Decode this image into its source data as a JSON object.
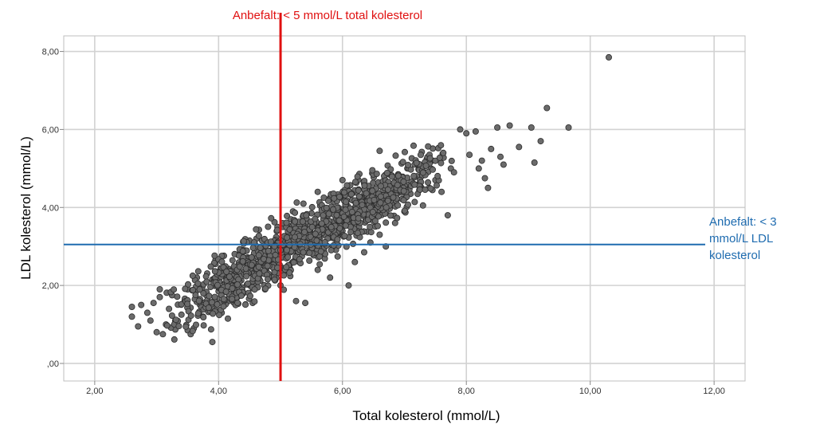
{
  "chart_data": {
    "type": "scatter",
    "title": "",
    "xlabel": "Total kolesterol (mmol/L)",
    "ylabel": "LDL kolesterol (mmol/L)",
    "xlim": [
      1.5,
      12.5
    ],
    "ylim": [
      -0.45,
      8.4
    ],
    "x_ticks": [
      2,
      4,
      6,
      8,
      10,
      12
    ],
    "x_tick_labels": [
      "2,00",
      "4,00",
      "6,00",
      "8,00",
      "10,00",
      "12,00"
    ],
    "y_ticks": [
      0,
      2,
      4,
      6,
      8
    ],
    "y_tick_labels": [
      ",00",
      "2,00",
      "4,00",
      "6,00",
      "8,00"
    ],
    "grid": true,
    "marker_color": "#6b6b6b",
    "marker_edge_color": "#2b2b2b",
    "reference_lines": [
      {
        "orientation": "vertical",
        "value": 5,
        "color": "#e01010",
        "label": "Anbefalt: < 5 mmol/L total kolesterol"
      },
      {
        "orientation": "horizontal",
        "value": 3.05,
        "color": "#1f6cb0",
        "label_lines": [
          "Anbefalt: < 3",
          "mmol/L LDL",
          "kolesterol"
        ]
      }
    ],
    "points": [
      [
        2.6,
        1.45
      ],
      [
        2.6,
        1.2
      ],
      [
        2.7,
        0.95
      ],
      [
        2.75,
        1.5
      ],
      [
        2.85,
        1.3
      ],
      [
        2.9,
        1.1
      ],
      [
        2.95,
        1.55
      ],
      [
        3.0,
        0.8
      ],
      [
        3.05,
        1.7
      ],
      [
        3.1,
        0.75
      ],
      [
        3.15,
        1.0
      ],
      [
        3.2,
        1.4
      ],
      [
        3.3,
        1.1
      ],
      [
        3.4,
        1.25
      ],
      [
        3.5,
        0.85
      ],
      [
        3.55,
        0.75
      ],
      [
        3.6,
        0.9
      ],
      [
        3.9,
        0.55
      ],
      [
        3.05,
        1.9
      ],
      [
        3.25,
        1.75
      ],
      [
        3.45,
        1.6
      ],
      [
        3.5,
        1.9
      ],
      [
        3.65,
        2.2
      ],
      [
        3.7,
        1.5
      ],
      [
        3.75,
        1.2
      ],
      [
        3.8,
        1.75
      ],
      [
        3.9,
        2.15
      ],
      [
        3.95,
        2.55
      ],
      [
        4.0,
        1.85
      ],
      [
        4.05,
        1.3
      ],
      [
        4.15,
        1.15
      ],
      [
        4.25,
        1.55
      ],
      [
        3.95,
        2.65
      ],
      [
        4.0,
        2.35
      ],
      [
        4.1,
        2.05
      ],
      [
        4.3,
        2.3
      ],
      [
        4.2,
        1.95
      ],
      [
        4.4,
        1.8
      ],
      [
        4.55,
        1.55
      ],
      [
        4.6,
        2.5
      ],
      [
        4.5,
        3.15
      ],
      [
        4.65,
        2.2
      ],
      [
        4.75,
        1.9
      ],
      [
        4.8,
        2.75
      ],
      [
        4.9,
        2.4
      ],
      [
        4.95,
        3.5
      ],
      [
        5.0,
        2.0
      ],
      [
        5.1,
        2.7
      ],
      [
        5.2,
        3.05
      ],
      [
        5.3,
        2.6
      ],
      [
        5.25,
        1.6
      ],
      [
        5.4,
        1.55
      ],
      [
        5.45,
        3.35
      ],
      [
        5.6,
        2.4
      ],
      [
        5.7,
        2.9
      ],
      [
        5.8,
        2.2
      ],
      [
        5.9,
        3.0
      ],
      [
        6.0,
        3.4
      ],
      [
        6.1,
        2.0
      ],
      [
        6.2,
        2.6
      ],
      [
        6.25,
        3.5
      ],
      [
        6.35,
        2.85
      ],
      [
        6.45,
        3.1
      ],
      [
        6.5,
        3.9
      ],
      [
        6.6,
        3.3
      ],
      [
        6.7,
        3.0
      ],
      [
        6.75,
        4.2
      ],
      [
        6.85,
        3.6
      ],
      [
        6.95,
        4.5
      ],
      [
        7.0,
        3.9
      ],
      [
        7.1,
        4.35
      ],
      [
        7.2,
        4.8
      ],
      [
        7.3,
        4.05
      ],
      [
        7.4,
        4.5
      ],
      [
        7.45,
        5.2
      ],
      [
        7.5,
        4.7
      ],
      [
        7.6,
        4.4
      ],
      [
        7.7,
        3.8
      ],
      [
        7.75,
        5.0
      ],
      [
        7.8,
        4.9
      ],
      [
        6.6,
        5.45
      ],
      [
        6.0,
        4.7
      ],
      [
        5.8,
        4.25
      ],
      [
        5.5,
        3.85
      ],
      [
        5.2,
        3.9
      ],
      [
        5.6,
        4.4
      ],
      [
        6.9,
        4.85
      ],
      [
        7.9,
        6.0
      ],
      [
        8.0,
        5.9
      ],
      [
        8.05,
        5.35
      ],
      [
        8.15,
        5.95
      ],
      [
        8.2,
        5.0
      ],
      [
        8.25,
        5.2
      ],
      [
        8.3,
        4.75
      ],
      [
        8.35,
        4.5
      ],
      [
        8.4,
        5.5
      ],
      [
        8.5,
        6.05
      ],
      [
        8.55,
        5.3
      ],
      [
        8.6,
        5.1
      ],
      [
        8.7,
        6.1
      ],
      [
        8.85,
        5.55
      ],
      [
        9.05,
        6.05
      ],
      [
        9.1,
        5.15
      ],
      [
        9.2,
        5.7
      ],
      [
        9.3,
        6.55
      ],
      [
        9.65,
        6.05
      ],
      [
        10.3,
        7.85
      ]
    ]
  }
}
